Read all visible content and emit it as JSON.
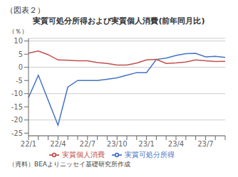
{
  "chart_data": {
    "type": "line",
    "title": "実質可処分所得および実質個人消費(前年同月比)",
    "y_label": "（％）",
    "annotations": [
      "（図表２）",
      "（資料）BEAよりニッセイ基礎研究所作成"
    ],
    "categories": [
      "22/1",
      null,
      null,
      "22/4",
      null,
      null,
      "22/7",
      null,
      null,
      "23/10",
      null,
      null,
      "23/1",
      null,
      null,
      "23/4",
      null,
      null,
      "23/7",
      null,
      null
    ],
    "series": [
      {
        "name": "実質可処分所得",
        "color": "#4472c4",
        "values": [
          -11.5,
          -3.0,
          -12.5,
          -22.0,
          -7.5,
          -5.0,
          -5.0,
          -5.0,
          -4.5,
          -4.0,
          -3.0,
          -2.0,
          -2.0,
          3.0,
          3.5,
          4.5,
          5.2,
          5.3,
          4.0,
          4.2,
          3.8
        ]
      },
      {
        "name": "実質個人消費",
        "color": "#c0504d",
        "values": [
          5.4,
          6.2,
          4.8,
          2.8,
          2.7,
          2.5,
          2.5,
          1.8,
          1.5,
          0.9,
          0.9,
          1.6,
          2.8,
          3.0,
          1.5,
          1.7,
          2.0,
          2.8,
          2.5,
          2.2,
          2.3
        ]
      }
    ],
    "ylim": [
      -26,
      11
    ],
    "yticks": [
      -25,
      -20,
      -15,
      -10,
      -5,
      0,
      5,
      10
    ],
    "grid": true,
    "legend": "bottom"
  }
}
